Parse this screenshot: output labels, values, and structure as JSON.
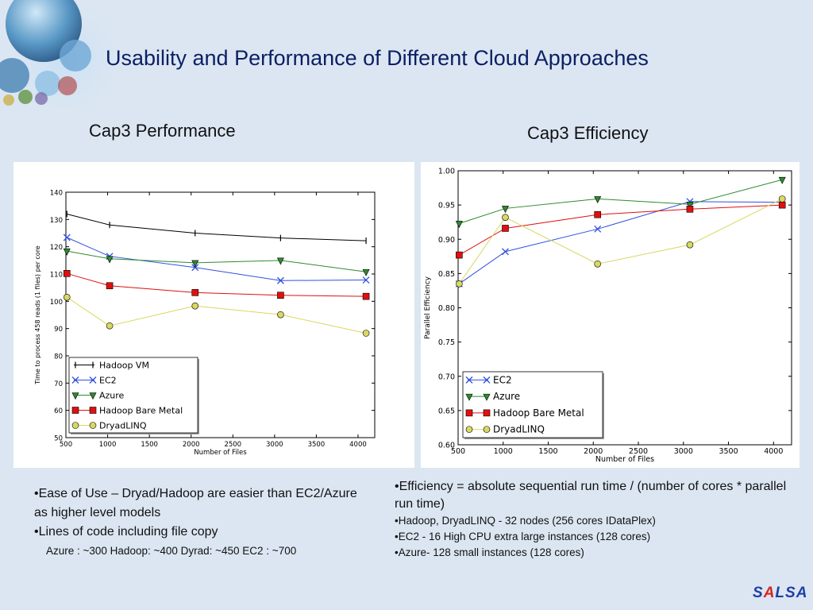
{
  "slide": {
    "title": "Usability and Performance of Different Cloud Approaches"
  },
  "logo": {
    "letters": [
      "S",
      "A",
      "L",
      "S",
      "A"
    ],
    "colors": [
      "#1f3fa8",
      "#d6261c",
      "#1f3fa8",
      "#1f3fa8",
      "#1f3fa8"
    ]
  },
  "left_notes": {
    "b1": "•Ease of Use – Dryad/Hadoop are easier than EC2/Azure as higher level models",
    "b2": "•Lines of code including  file copy",
    "b2_detail": "Azure : ~300  Hadoop: ~400  Dyrad: ~450  EC2 : ~700"
  },
  "right_notes": {
    "b1": "•Efficiency = absolute sequential run time / (number of cores * parallel run time)",
    "b2": "•Hadoop, DryadLINQ  - 32 nodes (256 cores IDataPlex)",
    "b3": "•EC2 - 16 High CPU extra large instances (128 cores)",
    "b4": "•Azure- 128 small instances (128 cores)"
  },
  "chart_data": [
    {
      "heading": "Cap3 Performance",
      "type": "line",
      "xlabel": "Number of Files",
      "ylabel": "Time to process 458 reads (1 files) per core",
      "xlim": [
        500,
        4200
      ],
      "ylim": [
        50,
        140
      ],
      "xticks": [
        500,
        1000,
        1500,
        2000,
        2500,
        3000,
        3500,
        4000
      ],
      "yticks": [
        50,
        60,
        70,
        80,
        90,
        100,
        110,
        120,
        130,
        140
      ],
      "grid": false,
      "legend": "lower-left",
      "x": [
        512,
        1024,
        2048,
        3072,
        4096
      ],
      "series": [
        {
          "name": "Hadoop VM",
          "color": "#000000",
          "marker": "tick",
          "values": [
            132,
            128,
            125,
            123.2,
            122.2
          ]
        },
        {
          "name": "EC2",
          "color": "#3050e0",
          "marker": "x",
          "values": [
            123.4,
            116.5,
            112.4,
            107.6,
            107.8
          ]
        },
        {
          "name": "Azure",
          "color": "#2f8a2f",
          "marker": "triangle",
          "values": [
            118.4,
            115.6,
            114.1,
            115,
            110.8
          ]
        },
        {
          "name": "Hadoop Bare Metal",
          "color": "#e01010",
          "marker": "square",
          "values": [
            110.2,
            105.7,
            103.2,
            102.2,
            101.8
          ]
        },
        {
          "name": "DryadLINQ",
          "color": "#d8d862",
          "marker": "circle",
          "values": [
            101.5,
            91,
            98.3,
            95.1,
            88.3
          ]
        }
      ]
    },
    {
      "heading": "Cap3 Efficiency",
      "type": "line",
      "xlabel": "Number of Files",
      "ylabel": "Parallel Efficiency",
      "xlim": [
        500,
        4200
      ],
      "ylim": [
        0.6,
        1.0
      ],
      "xticks": [
        500,
        1000,
        1500,
        2000,
        2500,
        3000,
        3500,
        4000
      ],
      "yticks": [
        "0.60",
        "0.65",
        "0.70",
        "0.75",
        "0.80",
        "0.85",
        "0.90",
        "0.95",
        "1.00"
      ],
      "grid": false,
      "legend": "lower-left",
      "x": [
        512,
        1024,
        2048,
        3072,
        4096
      ],
      "series": [
        {
          "name": "EC2",
          "color": "#3050e0",
          "marker": "x",
          "values": [
            0.835,
            0.882,
            0.915,
            0.955,
            0.954
          ]
        },
        {
          "name": "Azure",
          "color": "#2f8a2f",
          "marker": "triangle",
          "values": [
            0.923,
            0.945,
            0.959,
            0.951,
            0.987
          ]
        },
        {
          "name": "Hadoop Bare Metal",
          "color": "#e01010",
          "marker": "square",
          "values": [
            0.877,
            0.916,
            0.936,
            0.944,
            0.95
          ]
        },
        {
          "name": "DryadLINQ",
          "color": "#d8d862",
          "marker": "circle",
          "values": [
            0.835,
            0.932,
            0.864,
            0.892,
            0.959
          ]
        }
      ]
    }
  ]
}
